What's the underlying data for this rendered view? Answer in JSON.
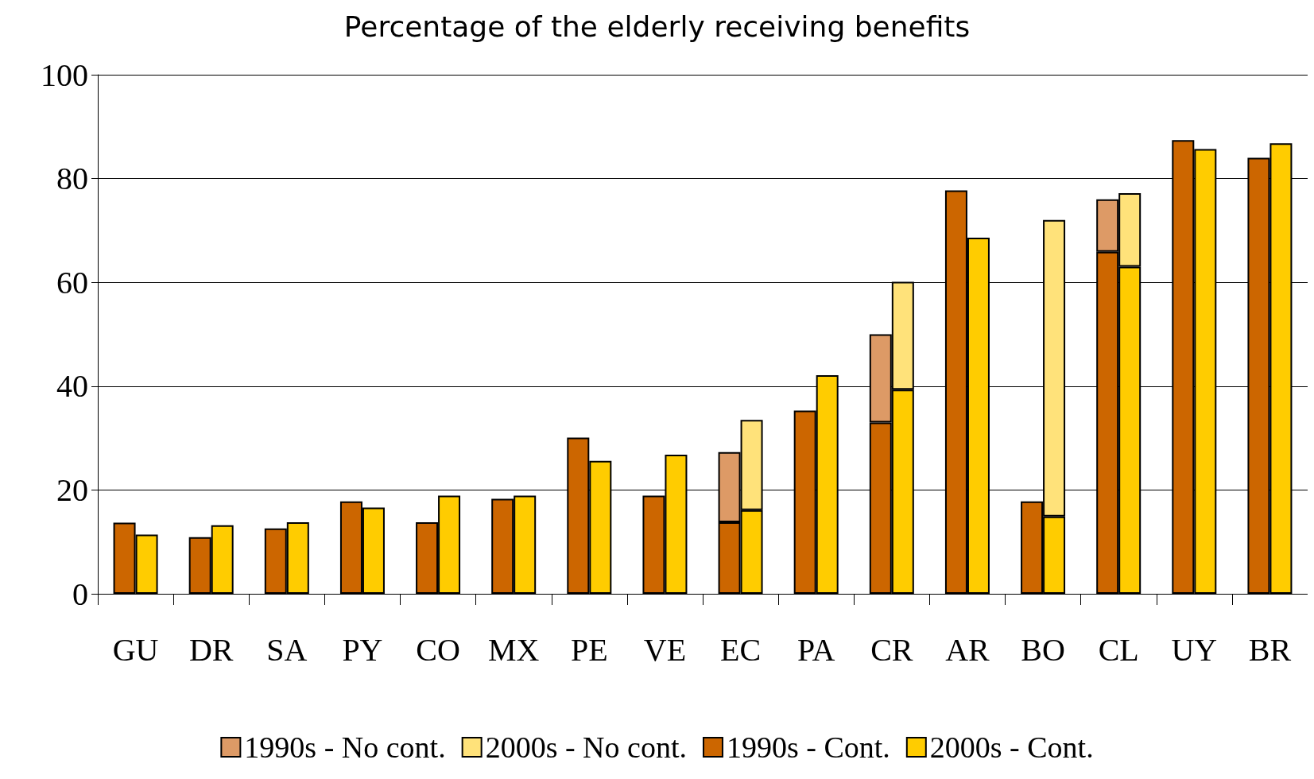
{
  "chart_data": {
    "type": "bar",
    "title": "Percentage of the elderly receiving benefits",
    "categories": [
      "GU",
      "DR",
      "SA",
      "PY",
      "CO",
      "MX",
      "PE",
      "VE",
      "EC",
      "PA",
      "CR",
      "AR",
      "BO",
      "CL",
      "UY",
      "BR"
    ],
    "series": [
      {
        "name": "1990s - No cont.",
        "color": "#dd9a66",
        "values": [
          null,
          null,
          null,
          null,
          null,
          null,
          null,
          null,
          13.5,
          null,
          17.0,
          null,
          null,
          10.1,
          null,
          null
        ],
        "base": [
          null,
          null,
          null,
          null,
          null,
          null,
          null,
          null,
          13.8,
          null,
          33.0,
          null,
          null,
          65.9,
          null,
          null
        ]
      },
      {
        "name": "2000s - No cont.",
        "color": "#ffe27a",
        "values": [
          null,
          null,
          null,
          null,
          null,
          null,
          null,
          null,
          17.4,
          null,
          20.8,
          null,
          57.1,
          14.2,
          null,
          null
        ],
        "base": [
          null,
          null,
          null,
          null,
          null,
          null,
          null,
          null,
          16.1,
          null,
          39.3,
          null,
          14.9,
          63.0,
          null,
          null
        ]
      },
      {
        "name": "1990s - Cont.",
        "color": "#cc6600",
        "values": [
          13.7,
          10.9,
          12.6,
          17.8,
          13.8,
          18.3,
          30.1,
          18.9,
          13.8,
          35.3,
          33.0,
          77.7,
          17.8,
          65.9,
          87.4,
          84.0
        ]
      },
      {
        "name": "2000s - Cont.",
        "color": "#ffcc00",
        "values": [
          11.4,
          13.2,
          13.8,
          16.6,
          18.9,
          18.9,
          25.6,
          26.8,
          16.1,
          42.1,
          39.3,
          68.6,
          14.9,
          63.0,
          85.7,
          86.8
        ]
      }
    ],
    "ylim": [
      0,
      100
    ],
    "yticks": [
      0,
      20,
      40,
      60,
      80,
      100
    ],
    "grid": "y",
    "legend": "bottom"
  }
}
